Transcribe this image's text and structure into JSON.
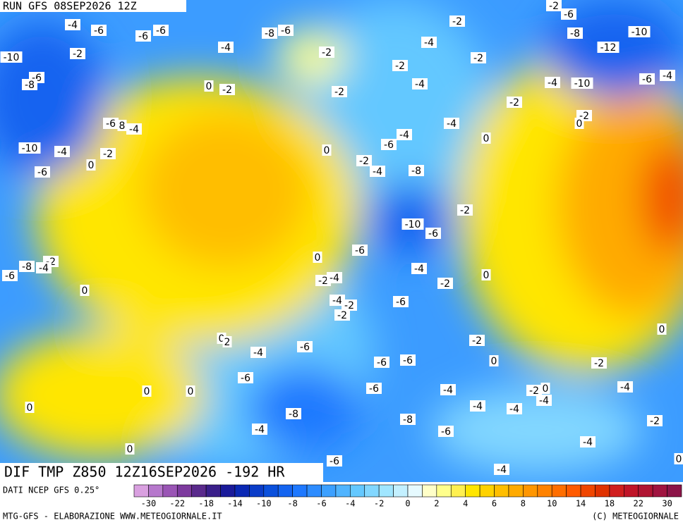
{
  "header": {
    "run": "RUN GFS 08SEP2026 12Z"
  },
  "title": "DIF TMP Z850 12Z16SEP2026 -192 HR",
  "source": "DATI NCEP GFS 0.25°",
  "footer_left": "MTG-GFS - ELABORAZIONE WWW.METEOGIORNALE.IT",
  "footer_right": "(C) METEOGIORNALE",
  "contour_labels": [
    -4,
    -6,
    -6,
    -6,
    -2,
    -10,
    -6,
    -8,
    -4,
    -8,
    -6,
    -2,
    -2,
    -2,
    -6,
    -8,
    -10,
    -12,
    -4,
    -2,
    -2,
    -4,
    -2,
    0,
    -2,
    -4,
    -10,
    -6,
    -4,
    -2,
    -2,
    0,
    -6,
    8,
    -4,
    -4,
    -4,
    -6,
    0,
    0,
    -10,
    -4,
    -2,
    0,
    -6,
    -2,
    -4,
    -8,
    -2,
    -10,
    -6,
    0,
    -6,
    -2,
    -8,
    -4,
    -6,
    0,
    -4,
    0,
    -2,
    -4,
    -2,
    -4,
    -2,
    -2,
    -6,
    0,
    0,
    2,
    -4,
    -6,
    -2,
    -6,
    -6,
    0,
    -2,
    -6,
    -6,
    -4,
    -2,
    0,
    -4,
    -4,
    0,
    0,
    0,
    -4,
    -4,
    -8,
    -8,
    -2,
    -4,
    -6,
    -4,
    0,
    -6,
    -4,
    0
  ],
  "legend": {
    "colors": [
      "#d9a0e0",
      "#b678cc",
      "#9a55b5",
      "#7d3a9e",
      "#5a2a8c",
      "#3a1f8a",
      "#1a1a9a",
      "#0a28b4",
      "#0a3cc8",
      "#0a50dc",
      "#1464f0",
      "#1e78ff",
      "#2d8cff",
      "#3ca0ff",
      "#50b4ff",
      "#64c8ff",
      "#82d7ff",
      "#a0e6ff",
      "#c3f0ff",
      "#e6faff",
      "#ffffc8",
      "#ffff8c",
      "#fff050",
      "#ffe600",
      "#ffd200",
      "#ffbe00",
      "#ffaa00",
      "#ff9600",
      "#ff8200",
      "#ff6e00",
      "#ff5a00",
      "#f04600",
      "#e03200",
      "#d01e1e",
      "#c01428",
      "#b01432",
      "#a01440",
      "#8c1448"
    ],
    "ticks": [
      -30,
      -22,
      -18,
      -14,
      -10,
      -8,
      -6,
      -4,
      -2,
      0,
      2,
      4,
      6,
      8,
      10,
      14,
      18,
      22,
      30
    ]
  }
}
